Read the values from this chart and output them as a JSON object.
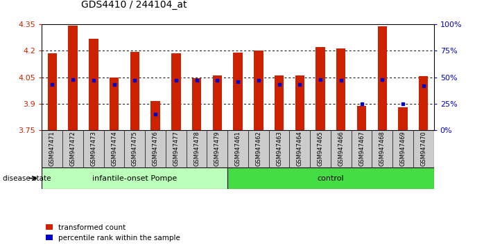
{
  "title": "GDS4410 / 244104_at",
  "samples": [
    "GSM947471",
    "GSM947472",
    "GSM947473",
    "GSM947474",
    "GSM947475",
    "GSM947476",
    "GSM947477",
    "GSM947478",
    "GSM947479",
    "GSM947461",
    "GSM947462",
    "GSM947463",
    "GSM947464",
    "GSM947465",
    "GSM947466",
    "GSM947467",
    "GSM947468",
    "GSM947469",
    "GSM947470"
  ],
  "transformed_count": [
    4.185,
    4.345,
    4.27,
    4.05,
    4.195,
    3.915,
    4.185,
    4.045,
    4.06,
    4.19,
    4.2,
    4.06,
    4.06,
    4.22,
    4.215,
    3.885,
    4.34,
    3.88,
    4.055
  ],
  "percentile_rank": [
    43,
    48,
    47,
    43,
    47,
    15,
    47,
    47,
    47,
    46,
    47,
    43,
    43,
    48,
    47,
    25,
    48,
    25,
    42
  ],
  "ymin": 3.75,
  "ymax": 4.35,
  "yticks": [
    3.75,
    3.9,
    4.05,
    4.2,
    4.35
  ],
  "percentile_ticks": [
    0,
    25,
    50,
    75,
    100
  ],
  "bar_color": "#cc2200",
  "dot_color": "#0000cc",
  "group1_label": "infantile-onset Pompe",
  "group2_label": "control",
  "group1_count": 9,
  "group2_count": 10,
  "group1_color": "#bbffbb",
  "group2_color": "#44dd44",
  "xlabels_bg": "#cccccc",
  "disease_state_label": "disease state",
  "legend1": "transformed count",
  "legend2": "percentile rank within the sample",
  "bar_width": 0.45
}
